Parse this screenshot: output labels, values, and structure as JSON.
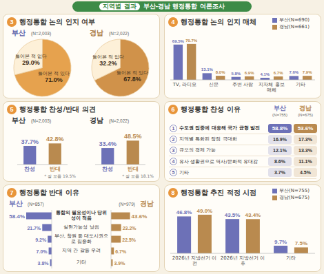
{
  "header": {
    "badge": "지역별 결과",
    "title": "부산-경남 행정통합 여론조사"
  },
  "chart_data": [
    {
      "number": "3",
      "type": "pie",
      "title": "행정통합 논의 인지 여부",
      "categories": [
        "들어본 적 있다",
        "들어본 적 없다"
      ],
      "data_labels": true,
      "series": [
        {
          "name": "부산",
          "sample": "(N=2,003)",
          "color": "#5c60a8",
          "colors": [
            "#e6a24e",
            "#fdf0d8"
          ],
          "values": [
            71.0,
            29.0
          ],
          "value_labels": [
            "71.0%",
            "29.0%"
          ]
        },
        {
          "name": "경남",
          "sample": "(N=2,022)",
          "color": "#a8783e",
          "colors": [
            "#d0924a",
            "#fdf0d8"
          ],
          "values": [
            67.8,
            32.2
          ],
          "value_labels": [
            "67.8%",
            "32.2%"
          ]
        }
      ]
    },
    {
      "number": "4",
      "type": "bar",
      "title": "행정통합 논의 인지 매체",
      "categories": [
        "TV, 라디오",
        "신문",
        "주변 사람",
        "지자체 홍보매체",
        "기타"
      ],
      "series": [
        {
          "name": "부산(N=690)",
          "color": "#6d71b7",
          "values": [
            69.5,
            13.1,
            5.8,
            4.1,
            7.6
          ],
          "value_labels": [
            "69.5%",
            "13.1%",
            "5.8%",
            "4.1%",
            "7.6%"
          ]
        },
        {
          "name": "경남(N=661)",
          "color": "#b98a4f",
          "values": [
            70.7,
            8.0,
            6.9,
            6.7,
            7.9
          ],
          "value_labels": [
            "70.7%",
            "8.0%",
            "6.9%",
            "6.7%",
            "7.9%"
          ]
        }
      ],
      "ylim": [
        0,
        80
      ],
      "data_labels": true,
      "tick_labels": "x",
      "legend": "top-right"
    },
    {
      "number": "5",
      "type": "bar",
      "title": "행정통합 찬성/반대 의견",
      "categories": [
        "찬성",
        "반대"
      ],
      "colors": [
        "#6d71b7",
        "#b98a4f"
      ],
      "series": [
        {
          "name": "부산",
          "sample": "(N=2,003)",
          "values": [
            37.7,
            42.8
          ],
          "value_labels": [
            "37.7%",
            "42.8%"
          ],
          "note": "* 잘 모름 19.5%"
        },
        {
          "name": "경남",
          "sample": "(N=2,022)",
          "values": [
            33.4,
            48.5
          ],
          "value_labels": [
            "33.4%",
            "48.5%"
          ],
          "note": "* 잘 모름 18.1%"
        }
      ],
      "ylim": [
        0,
        60
      ],
      "data_labels": true,
      "tick_labels": "x"
    },
    {
      "number": "6",
      "type": "table",
      "title": "행정통합 찬성 이유",
      "rank_labels": [
        "1",
        "2",
        "3",
        "4",
        "5"
      ],
      "categories": [
        "수도권 집중에 대응해 국가 균형 발전",
        "지역별 특화된 장점 극대화",
        "규모의 경제 가능",
        "유사 생활권으로 역사/문화적 유대감",
        "기타"
      ],
      "series": [
        {
          "name": "부산",
          "sample": "(N=755)",
          "color": "#6d71b7",
          "values": [
            58.8,
            16.9,
            12.1,
            8.6,
            3.7
          ],
          "value_labels": [
            "58.8%",
            "16.9%",
            "12.1%",
            "8.6%",
            "3.7%"
          ]
        },
        {
          "name": "경남",
          "sample": "(N=675)",
          "color": "#b98a4f",
          "values": [
            53.6,
            17.3,
            13.3,
            11.1,
            4.5
          ],
          "value_labels": [
            "53.6%",
            "17.3%",
            "13.3%",
            "11.1%",
            "4.5%"
          ]
        }
      ]
    },
    {
      "number": "7",
      "type": "bar",
      "orientation": "horizontal",
      "title": "행정통합 반대 이유",
      "categories": [
        "통합의 필요성이나 당위성이 적음",
        "실현가능성 낮음",
        "부산, 창원 등 대도시권으로 집중화",
        "지역 간 갈등 우려",
        "기타"
      ],
      "series": [
        {
          "name": "부산",
          "sample": "(N=857)",
          "color": "#6d71b7",
          "values": [
            58.4,
            21.7,
            9.2,
            7.0,
            3.8
          ],
          "value_labels": [
            "58.4%",
            "21.7%",
            "9.2%",
            "7.0%",
            "3.8%"
          ]
        },
        {
          "name": "경남",
          "sample": "(N=979)",
          "color": "#b98a4f",
          "values": [
            43.6,
            23.2,
            22.5,
            6.7,
            3.9
          ],
          "value_labels": [
            "43.6%",
            "23.2%",
            "22.5%",
            "6.7%",
            "3.9%"
          ]
        }
      ],
      "xlim": [
        0,
        60
      ],
      "data_labels": true,
      "tick_labels": "y"
    },
    {
      "number": "8",
      "type": "bar",
      "title": "행정통합 추진 적정 시점",
      "categories": [
        "2026년 지방선거 이전",
        "2026년 지방선거 이후",
        "기타"
      ],
      "series": [
        {
          "name": "부산(N=755)",
          "color": "#6d71b7",
          "values": [
            46.8,
            43.5,
            9.7
          ],
          "value_labels": [
            "46.8%",
            "43.5%",
            "9.7%"
          ]
        },
        {
          "name": "경남(N=675)",
          "color": "#b98a4f",
          "values": [
            49.0,
            43.4,
            7.5
          ],
          "value_labels": [
            "49.0%",
            "43.4%",
            "7.5%"
          ]
        }
      ],
      "ylim": [
        0,
        55
      ],
      "data_labels": true,
      "tick_labels": "x",
      "legend": "top-right"
    }
  ]
}
